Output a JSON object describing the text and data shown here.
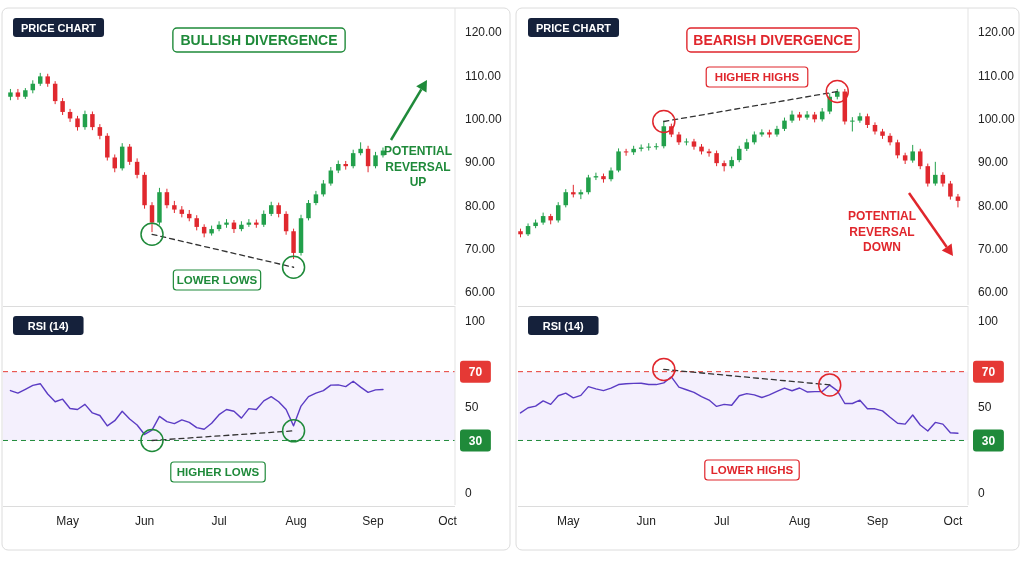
{
  "chart_data": [
    {
      "type": "candlestick",
      "title": "PRICE CHART",
      "subtitle": "BULLISH DIVERGENCE",
      "annotations": [
        "LOWER LOWS",
        "POTENTIAL REVERSAL UP"
      ],
      "xlim": [
        "--04-05",
        "--10-04"
      ],
      "ylim": [
        57,
        125
      ],
      "yticks": [
        {
          "value": 60,
          "label": "60.00"
        },
        {
          "value": 70,
          "label": "70.00"
        },
        {
          "value": 80,
          "label": "80.00"
        },
        {
          "value": 90,
          "label": "90.00"
        },
        {
          "value": 100,
          "label": "100.00"
        },
        {
          "value": 110,
          "label": "110.00"
        },
        {
          "value": 120,
          "label": "120.00"
        }
      ],
      "tick_labels": "y",
      "x": [
        "--04-08",
        "--04-11",
        "--04-14",
        "--04-17",
        "--04-20",
        "--04-23",
        "--04-26",
        "--04-29",
        "--05-02",
        "--05-05",
        "--05-08",
        "--05-11",
        "--05-14",
        "--05-17",
        "--05-20",
        "--05-23",
        "--05-26",
        "--05-29",
        "--06-01",
        "--06-04",
        "--06-07",
        "--06-10",
        "--06-13",
        "--06-16",
        "--06-19",
        "--06-22",
        "--06-25",
        "--06-28",
        "--07-01",
        "--07-04",
        "--07-07",
        "--07-10",
        "--07-13",
        "--07-16",
        "--07-19",
        "--07-22",
        "--07-25",
        "--07-28",
        "--07-31",
        "--08-03",
        "--08-06",
        "--08-09",
        "--08-12",
        "--08-15",
        "--08-18",
        "--08-21",
        "--08-24",
        "--08-27",
        "--08-30",
        "--09-02",
        "--09-05"
      ],
      "ohlc": [
        [
          105,
          106.8,
          104.2,
          106
        ],
        [
          106,
          106.8,
          104.3,
          105
        ],
        [
          105,
          107,
          104.5,
          106.5
        ],
        [
          106.5,
          108.8,
          105.8,
          108
        ],
        [
          108,
          110.5,
          107.5,
          109.7
        ],
        [
          109.7,
          110.3,
          107.3,
          108
        ],
        [
          108,
          108.6,
          103.3,
          104
        ],
        [
          104,
          104.7,
          100.8,
          101.5
        ],
        [
          101.5,
          102.2,
          99.2,
          100
        ],
        [
          100,
          100.6,
          97.2,
          98
        ],
        [
          98,
          101.8,
          97.4,
          101
        ],
        [
          101,
          101.6,
          97.3,
          98
        ],
        [
          98,
          98.7,
          95.2,
          96
        ],
        [
          96,
          96.6,
          90.3,
          91
        ],
        [
          91,
          91.7,
          87.6,
          88.5
        ],
        [
          88.5,
          94.3,
          88,
          93.5
        ],
        [
          93.5,
          94.1,
          89.3,
          90
        ],
        [
          90,
          90.8,
          86.2,
          87
        ],
        [
          87,
          87.6,
          79.2,
          80
        ],
        [
          80,
          80.7,
          73.8,
          76
        ],
        [
          76,
          84,
          75.5,
          83
        ],
        [
          83,
          83.8,
          79.3,
          80
        ],
        [
          80,
          81,
          78.2,
          79
        ],
        [
          79,
          79.8,
          77.2,
          78
        ],
        [
          78,
          78.9,
          76.3,
          77
        ],
        [
          77,
          77.7,
          74.2,
          75
        ],
        [
          75,
          75.6,
          72.6,
          73.5
        ],
        [
          73.5,
          75.3,
          73,
          74.5
        ],
        [
          74.5,
          76.3,
          74,
          75.5
        ],
        [
          75.5,
          76.8,
          74.8,
          76
        ],
        [
          76,
          76.6,
          73.6,
          74.5
        ],
        [
          74.5,
          76.3,
          74,
          75.5
        ],
        [
          75.5,
          76.8,
          75,
          76
        ],
        [
          76,
          76.7,
          74.8,
          75.5
        ],
        [
          75.5,
          78.8,
          75,
          78
        ],
        [
          78,
          80.8,
          77.5,
          80
        ],
        [
          80,
          80.6,
          77.2,
          78
        ],
        [
          78,
          78.6,
          73.2,
          74
        ],
        [
          74,
          74.6,
          67.6,
          69
        ],
        [
          69,
          77.8,
          68.4,
          77
        ],
        [
          77,
          81.2,
          76.5,
          80.5
        ],
        [
          80.5,
          83.3,
          80,
          82.5
        ],
        [
          82.5,
          85.8,
          82,
          85
        ],
        [
          85,
          88.8,
          84.5,
          88
        ],
        [
          88,
          90.3,
          87.4,
          89.5
        ],
        [
          89.5,
          90.2,
          88.2,
          89
        ],
        [
          89,
          92.8,
          88.5,
          92
        ],
        [
          92,
          94.5,
          91.5,
          93
        ],
        [
          93,
          93.7,
          87.6,
          89
        ],
        [
          89,
          92.3,
          88.5,
          91.5
        ],
        [
          91.5,
          93.3,
          91,
          92.6
        ]
      ],
      "series": [
        {
          "type": "line",
          "color": "#333333",
          "line_style": "dashed",
          "marker": "circle",
          "x": [
            "--06-04",
            "--07-31"
          ],
          "values": [
            73.3,
            65.7
          ]
        }
      ]
    },
    {
      "type": "candlestick",
      "title": "PRICE CHART",
      "subtitle": "BEARISH DIVERGENCE",
      "annotations": [
        "HIGHER HIGHS",
        "POTENTIAL REVERSAL DOWN"
      ],
      "xlim": [
        "--04-11",
        "--10-07"
      ],
      "ylim": [
        57,
        125
      ],
      "yticks": [
        {
          "value": 60,
          "label": "60.00"
        },
        {
          "value": 70,
          "label": "70.00"
        },
        {
          "value": 80,
          "label": "80.00"
        },
        {
          "value": 90,
          "label": "90.00"
        },
        {
          "value": 100,
          "label": "100.00"
        },
        {
          "value": 110,
          "label": "110.00"
        },
        {
          "value": 120,
          "label": "120.00"
        }
      ],
      "tick_labels": "y",
      "x": [
        "--04-12",
        "--04-15",
        "--04-18",
        "--04-21",
        "--04-24",
        "--04-27",
        "--04-30",
        "--05-03",
        "--05-06",
        "--05-09",
        "--05-12",
        "--05-15",
        "--05-18",
        "--05-21",
        "--05-24",
        "--05-27",
        "--05-30",
        "--06-02",
        "--06-05",
        "--06-08",
        "--06-11",
        "--06-14",
        "--06-17",
        "--06-20",
        "--06-23",
        "--06-26",
        "--06-29",
        "--07-02",
        "--07-05",
        "--07-08",
        "--07-11",
        "--07-14",
        "--07-17",
        "--07-20",
        "--07-23",
        "--07-26",
        "--07-29",
        "--08-01",
        "--08-04",
        "--08-07",
        "--08-10",
        "--08-13",
        "--08-16",
        "--08-19",
        "--08-22",
        "--08-25",
        "--08-28",
        "--08-31",
        "--09-03",
        "--09-06",
        "--09-09",
        "--09-12",
        "--09-15",
        "--09-18",
        "--09-21",
        "--09-24",
        "--09-27",
        "--09-30",
        "--10-03"
      ],
      "ohlc": [
        [
          74,
          74.6,
          72.6,
          73.3
        ],
        [
          73.3,
          75.8,
          72.9,
          75.2
        ],
        [
          75.2,
          76.7,
          74.7,
          76
        ],
        [
          76,
          78.3,
          75.5,
          77.5
        ],
        [
          77.5,
          78,
          75.6,
          76.5
        ],
        [
          76.5,
          80.7,
          76,
          80
        ],
        [
          80,
          83.7,
          79.5,
          83
        ],
        [
          83,
          84.7,
          81.8,
          82.5
        ],
        [
          82.5,
          83.6,
          81.4,
          83
        ],
        [
          83,
          87,
          82.5,
          86.4
        ],
        [
          86.4,
          87.5,
          85.8,
          86.7
        ],
        [
          86.7,
          87.3,
          85.2,
          86
        ],
        [
          86,
          88.7,
          85.5,
          88
        ],
        [
          88,
          93.1,
          87.6,
          92.4
        ],
        [
          92.4,
          93,
          91.4,
          92.2
        ],
        [
          92.2,
          93.7,
          91.6,
          93
        ],
        [
          93,
          94,
          92.4,
          93.3
        ],
        [
          93.3,
          94.3,
          92.6,
          93.5
        ],
        [
          93.5,
          94.3,
          92.8,
          93.6
        ],
        [
          93.6,
          99.5,
          93.1,
          98.2
        ],
        [
          98.2,
          98.8,
          95.7,
          96.3
        ],
        [
          96.3,
          96.9,
          93.9,
          94.5
        ],
        [
          94.5,
          95.4,
          93.8,
          94.7
        ],
        [
          94.7,
          95.3,
          92.8,
          93.5
        ],
        [
          93.5,
          94.1,
          91.7,
          92.4
        ],
        [
          92.4,
          93,
          91.2,
          92
        ],
        [
          92,
          92.6,
          89,
          89.7
        ],
        [
          89.7,
          90.3,
          87.8,
          89
        ],
        [
          89,
          91.2,
          88.5,
          90.4
        ],
        [
          90.4,
          93.7,
          89.9,
          93
        ],
        [
          93,
          95.3,
          92.5,
          94.5
        ],
        [
          94.5,
          97,
          94,
          96.3
        ],
        [
          96.3,
          97.5,
          95.8,
          96.8
        ],
        [
          96.8,
          97.4,
          95.6,
          96.3
        ],
        [
          96.3,
          98.3,
          95.8,
          97.6
        ],
        [
          97.6,
          100.2,
          97.1,
          99.5
        ],
        [
          99.5,
          101.8,
          99,
          100.9
        ],
        [
          100.9,
          101.5,
          99.5,
          100.2
        ],
        [
          100.2,
          101.7,
          99.7,
          100.9
        ],
        [
          100.9,
          101.5,
          99.1,
          99.8
        ],
        [
          99.8,
          102.4,
          99.3,
          101.6
        ],
        [
          101.6,
          105.8,
          101,
          105
        ],
        [
          105,
          106.8,
          104.4,
          106.2
        ],
        [
          106.2,
          106.8,
          98.6,
          99.3
        ],
        [
          99.3,
          100.3,
          97,
          99.5
        ],
        [
          99.5,
          101.3,
          99,
          100.5
        ],
        [
          100.5,
          101.1,
          97.8,
          98.5
        ],
        [
          98.5,
          99.1,
          96.3,
          97
        ],
        [
          97,
          97.6,
          95.3,
          96
        ],
        [
          96,
          96.6,
          93.8,
          94.5
        ],
        [
          94.5,
          95.1,
          90.8,
          91.5
        ],
        [
          91.5,
          92.1,
          89.5,
          90.3
        ],
        [
          90.3,
          93.9,
          89.8,
          92.4
        ],
        [
          92.4,
          93,
          88.3,
          89
        ],
        [
          89,
          89.6,
          84.3,
          85
        ],
        [
          85,
          90,
          84.5,
          87
        ],
        [
          87,
          87.6,
          84.3,
          85
        ],
        [
          85,
          85.6,
          81.3,
          82
        ],
        [
          82,
          82.6,
          79.5,
          81
        ]
      ],
      "series": [
        {
          "type": "line",
          "color": "#333333",
          "line_style": "dashed",
          "marker": "circle",
          "x": [
            "--06-08",
            "--08-16"
          ],
          "values": [
            99.3,
            106.2
          ]
        }
      ]
    },
    {
      "type": "line",
      "title": "RSI (14)",
      "annotations": [
        "HIGHER LOWS"
      ],
      "xlim": [
        "--04-05",
        "--10-04"
      ],
      "ylim": [
        -7.5,
        107
      ],
      "yticks": [
        0,
        50,
        100
      ],
      "xticks": [
        {
          "value": "--05-01",
          "label": "May"
        },
        {
          "value": "--06-01",
          "label": "Jun"
        },
        {
          "value": "--07-01",
          "label": "Jul"
        },
        {
          "value": "--08-01",
          "label": "Aug"
        },
        {
          "value": "--09-01",
          "label": "Sep"
        },
        {
          "value": "--10-01",
          "label": "Oct"
        }
      ],
      "ref_lines": [
        {
          "axis": "y",
          "value": 70,
          "label": "70",
          "color": "#e53935",
          "line_style": "dashed"
        },
        {
          "axis": "y",
          "value": 30,
          "label": "30",
          "color": "#1f8a3a",
          "line_style": "dashed"
        }
      ],
      "bands": [
        {
          "axis": "y",
          "from": 30,
          "to": 70,
          "color": "#f4f0fd"
        }
      ],
      "x": [
        "--04-08",
        "--04-11",
        "--04-14",
        "--04-17",
        "--04-20",
        "--04-23",
        "--04-26",
        "--04-29",
        "--05-02",
        "--05-05",
        "--05-08",
        "--05-11",
        "--05-14",
        "--05-17",
        "--05-20",
        "--05-23",
        "--05-26",
        "--05-29",
        "--06-01",
        "--06-04",
        "--06-07",
        "--06-10",
        "--06-13",
        "--06-16",
        "--06-19",
        "--06-22",
        "--06-25",
        "--06-28",
        "--07-01",
        "--07-04",
        "--07-07",
        "--07-10",
        "--07-13",
        "--07-16",
        "--07-19",
        "--07-22",
        "--07-25",
        "--07-28",
        "--07-31",
        "--08-03",
        "--08-06",
        "--08-09",
        "--08-12",
        "--08-15",
        "--08-18",
        "--08-21",
        "--08-24",
        "--08-27",
        "--08-30",
        "--09-02",
        "--09-05"
      ],
      "series": [
        {
          "color": "#5b3cc4",
          "values": [
            59,
            57.5,
            59.7,
            62,
            63,
            57,
            52.5,
            54,
            48.6,
            48,
            51,
            46,
            44.5,
            38.5,
            41.5,
            47,
            42.5,
            39,
            33.5,
            36,
            44,
            41,
            39.8,
            42,
            40.5,
            37.5,
            36.5,
            40,
            45,
            48,
            47,
            43,
            48.5,
            48,
            53,
            55.5,
            52.5,
            48,
            38.5,
            50,
            55.5,
            57.5,
            59,
            62.2,
            62.3,
            61.3,
            64.4,
            61,
            58,
            59.4,
            59.6
          ]
        },
        {
          "color": "#333333",
          "line_style": "dashed",
          "marker": "circle",
          "x": [
            "--06-04",
            "--07-31"
          ],
          "values": [
            30,
            35.6
          ]
        }
      ]
    },
    {
      "type": "line",
      "title": "RSI (14)",
      "annotations": [
        "LOWER HIGHS"
      ],
      "xlim": [
        "--04-11",
        "--10-07"
      ],
      "ylim": [
        -7.5,
        107
      ],
      "yticks": [
        0,
        50,
        100
      ],
      "xticks": [
        {
          "value": "--05-01",
          "label": "May"
        },
        {
          "value": "--06-01",
          "label": "Jun"
        },
        {
          "value": "--07-01",
          "label": "Jul"
        },
        {
          "value": "--08-01",
          "label": "Aug"
        },
        {
          "value": "--09-01",
          "label": "Sep"
        },
        {
          "value": "--10-01",
          "label": "Oct"
        }
      ],
      "ref_lines": [
        {
          "axis": "y",
          "value": 70,
          "label": "70",
          "color": "#e53935",
          "line_style": "dashed"
        },
        {
          "axis": "y",
          "value": 30,
          "label": "30",
          "color": "#1f8a3a",
          "line_style": "dashed"
        }
      ],
      "bands": [
        {
          "axis": "y",
          "from": 30,
          "to": 70,
          "color": "#f4f0fd"
        }
      ],
      "x": [
        "--04-12",
        "--04-15",
        "--04-18",
        "--04-21",
        "--04-24",
        "--04-27",
        "--04-30",
        "--05-03",
        "--05-06",
        "--05-09",
        "--05-12",
        "--05-15",
        "--05-18",
        "--05-21",
        "--05-24",
        "--05-27",
        "--05-30",
        "--06-02",
        "--06-05",
        "--06-08",
        "--06-11",
        "--06-14",
        "--06-17",
        "--06-20",
        "--06-23",
        "--06-26",
        "--06-29",
        "--07-02",
        "--07-05",
        "--07-08",
        "--07-11",
        "--07-14",
        "--07-17",
        "--07-20",
        "--07-23",
        "--07-26",
        "--07-29",
        "--08-01",
        "--08-04",
        "--08-07",
        "--08-10",
        "--08-13",
        "--08-16",
        "--08-19",
        "--08-22",
        "--08-25",
        "--08-28",
        "--08-31",
        "--09-03",
        "--09-06",
        "--09-09",
        "--09-12",
        "--09-15",
        "--09-18",
        "--09-21",
        "--09-24",
        "--09-27",
        "--09-30",
        "--10-03"
      ],
      "series": [
        {
          "color": "#5b3cc4",
          "values": [
            46,
            49,
            50,
            53,
            51,
            56,
            57.5,
            54.8,
            56.2,
            61.3,
            60,
            59,
            60.4,
            62.5,
            63,
            63.2,
            63.3,
            62.5,
            62.5,
            63.5,
            67,
            61,
            59.5,
            58,
            55.5,
            53.5,
            49.8,
            51,
            50.5,
            56,
            57.2,
            56.5,
            55,
            56.5,
            58.5,
            60.4,
            58.9,
            60.5,
            58.2,
            58.4,
            58.5,
            62.2,
            59,
            51.5,
            51.5,
            53.4,
            48.4,
            48.4,
            47.2,
            43.5,
            40,
            39.5,
            44.8,
            39,
            35.5,
            40.5,
            39.5,
            34.5,
            34.2
          ]
        },
        {
          "color": "#333333",
          "line_style": "dashed",
          "marker": "circle",
          "x": [
            "--06-08",
            "--08-13"
          ],
          "values": [
            71.3,
            62.3
          ]
        }
      ]
    }
  ]
}
